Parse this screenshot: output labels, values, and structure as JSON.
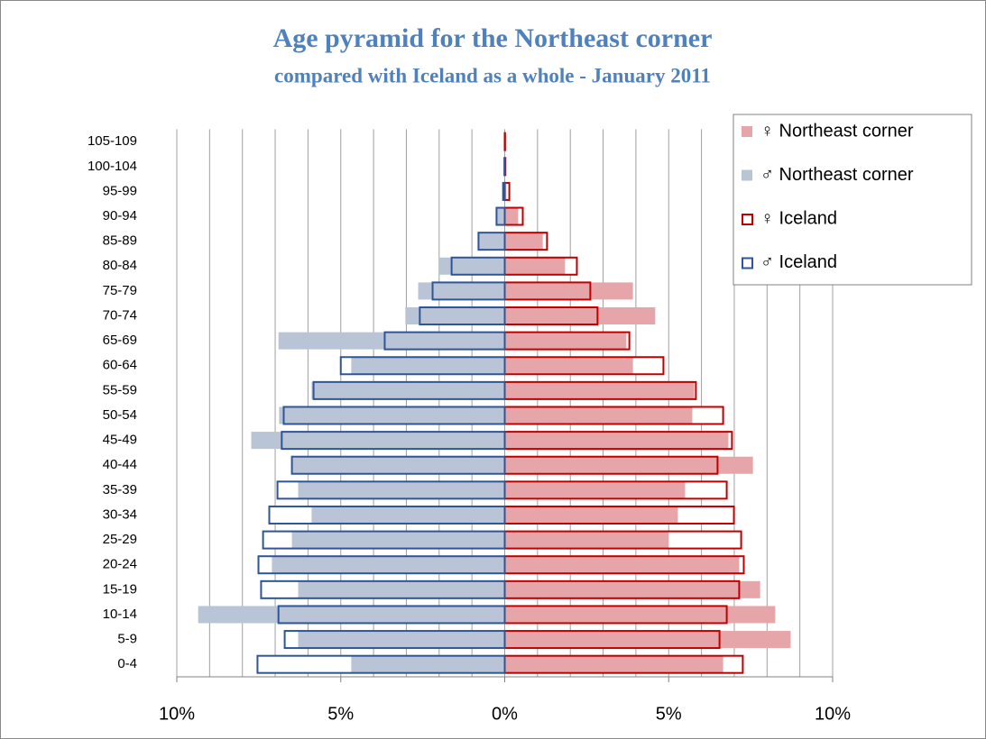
{
  "chart_data": {
    "type": "population_pyramid",
    "title": "Age pyramid for the Northeast corner",
    "subtitle": "compared with Iceland as a whole - January 2011",
    "categories": [
      "0-4",
      "5-9",
      "10-14",
      "15-19",
      "20-24",
      "25-29",
      "30-34",
      "35-39",
      "40-44",
      "45-49",
      "50-54",
      "55-59",
      "60-64",
      "65-69",
      "70-74",
      "75-79",
      "80-84",
      "85-89",
      "90-94",
      "95-99",
      "100-104",
      "105-109"
    ],
    "series": [
      {
        "name": "♀ Northeast corner",
        "style": "filled",
        "color": "#e6a6a9",
        "values": [
          6.66,
          8.72,
          8.25,
          7.79,
          7.15,
          5.0,
          5.28,
          5.5,
          7.57,
          6.82,
          5.72,
          5.78,
          3.91,
          3.71,
          4.59,
          3.91,
          1.84,
          1.16,
          0.41,
          0.05,
          0,
          0
        ]
      },
      {
        "name": "♂ Northeast corner",
        "style": "filled",
        "color": "#b9c4d6",
        "values": [
          -4.68,
          -6.3,
          -9.35,
          -6.3,
          -7.1,
          -6.49,
          -5.89,
          -6.3,
          -6.49,
          -7.73,
          -6.88,
          -5.89,
          -4.68,
          -6.9,
          -3.03,
          -2.64,
          -2.0,
          -0.8,
          -0.25,
          0,
          0,
          0
        ]
      },
      {
        "name": "♀ Iceland",
        "style": "outline",
        "color": "#c00000",
        "values": [
          7.26,
          6.55,
          6.77,
          7.15,
          7.29,
          7.21,
          6.99,
          6.77,
          6.49,
          6.93,
          6.66,
          5.83,
          4.84,
          3.8,
          2.83,
          2.61,
          2.2,
          1.29,
          0.55,
          0.14,
          0.02,
          0.01
        ]
      },
      {
        "name": "♂ Iceland",
        "style": "outline",
        "color": "#2f5597",
        "values": [
          -7.54,
          -6.71,
          -6.9,
          -7.43,
          -7.51,
          -7.37,
          -7.18,
          -6.93,
          -6.49,
          -6.8,
          -6.74,
          -5.83,
          -5.0,
          -3.66,
          -2.59,
          -2.2,
          -1.62,
          -0.8,
          -0.25,
          -0.05,
          -0.01,
          0
        ]
      }
    ],
    "xlim": [
      -10,
      10
    ],
    "xticks": [
      {
        "value": -10,
        "label": "10%"
      },
      {
        "value": -5,
        "label": "5%"
      },
      {
        "value": 0,
        "label": "0%"
      },
      {
        "value": 5,
        "label": "5%"
      },
      {
        "value": 10,
        "label": "10%"
      }
    ],
    "grid_xticks": [
      -10,
      -9,
      -8,
      -7,
      -6,
      -5,
      -4,
      -3,
      -2,
      -1,
      0,
      1,
      2,
      3,
      4,
      5,
      6,
      7,
      8,
      9,
      10
    ],
    "grid": true,
    "legend": "upper right"
  }
}
